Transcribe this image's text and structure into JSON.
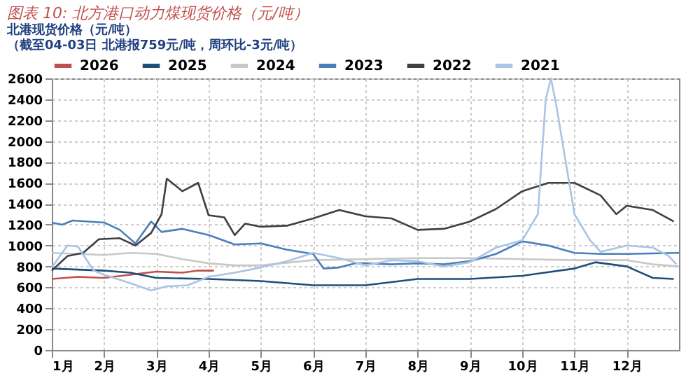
{
  "chart_data": {
    "type": "line",
    "title": "图表 10: 北方港口动力煤现货价格（元/吨）",
    "subtitle": "北港现货价格（元/吨）",
    "annotations": [
      "（截至04-03日 北港报759元/吨，周环比-3元/吨）"
    ],
    "xlim": [
      1,
      13
    ],
    "xticks": [
      {
        "value": 1,
        "label": "1月"
      },
      {
        "value": 2,
        "label": "2月"
      },
      {
        "value": 3,
        "label": "3月"
      },
      {
        "value": 4,
        "label": "4月"
      },
      {
        "value": 5,
        "label": "5月"
      },
      {
        "value": 6,
        "label": "6月"
      },
      {
        "value": 7,
        "label": "7月"
      },
      {
        "value": 8,
        "label": "8月"
      },
      {
        "value": 9,
        "label": "9月"
      },
      {
        "value": 10,
        "label": "10月"
      },
      {
        "value": 11,
        "label": "11月"
      },
      {
        "value": 12,
        "label": "12月"
      }
    ],
    "ylim": [
      0,
      2600
    ],
    "yticks": [
      0,
      200,
      400,
      600,
      800,
      1000,
      1200,
      1400,
      1600,
      1800,
      2000,
      2200,
      2400,
      2600
    ],
    "grid": true,
    "legend": "top",
    "marker": "none",
    "line_style": "solid",
    "series": [
      {
        "name": "2026",
        "color": "#c0504d",
        "x": [
          1,
          1.5,
          2,
          2.5,
          3,
          3.5,
          3.8,
          4.1
        ],
        "values": [
          680,
          700,
          690,
          720,
          750,
          740,
          760,
          760
        ]
      },
      {
        "name": "2025",
        "color": "#1f4e79",
        "x": [
          1,
          2,
          2.5,
          3,
          4,
          5,
          6,
          7,
          8,
          9,
          10,
          11,
          11.4,
          12,
          12.5,
          12.9
        ],
        "values": [
          780,
          760,
          740,
          690,
          680,
          660,
          620,
          620,
          680,
          680,
          710,
          780,
          840,
          800,
          690,
          680
        ]
      },
      {
        "name": "2024",
        "color": "#c8c8c8",
        "x": [
          1,
          2,
          2.5,
          3,
          3.5,
          4,
          4.5,
          5,
          6,
          7,
          8,
          9,
          10,
          11,
          12,
          12.5,
          13
        ],
        "values": [
          930,
          910,
          930,
          920,
          870,
          830,
          810,
          810,
          860,
          870,
          880,
          880,
          870,
          860,
          860,
          820,
          800
        ]
      },
      {
        "name": "2023",
        "color": "#4a7ebb",
        "x": [
          1,
          1.2,
          1.4,
          2,
          2.3,
          2.6,
          2.9,
          3.1,
          3.5,
          4,
          4.5,
          5,
          5.5,
          6,
          6.2,
          6.5,
          6.8,
          7,
          7.5,
          8,
          8.5,
          9,
          9.5,
          10,
          10.5,
          11,
          11.5,
          12,
          13
        ],
        "values": [
          1220,
          1200,
          1240,
          1220,
          1150,
          1020,
          1230,
          1130,
          1160,
          1100,
          1010,
          1020,
          960,
          920,
          780,
          790,
          830,
          830,
          820,
          830,
          820,
          850,
          920,
          1040,
          1000,
          930,
          920,
          920,
          930
        ]
      },
      {
        "name": "2022",
        "color": "#404040",
        "x": [
          1,
          1.3,
          1.6,
          1.9,
          2.3,
          2.6,
          2.9,
          3.1,
          3.2,
          3.5,
          3.8,
          4,
          4.3,
          4.5,
          4.7,
          5,
          5.5,
          6,
          6.5,
          7,
          7.5,
          8,
          8.5,
          9,
          9.5,
          10,
          10.5,
          11,
          11.5,
          11.8,
          12,
          12.5,
          12.9
        ],
        "values": [
          760,
          900,
          930,
          1060,
          1070,
          1000,
          1120,
          1300,
          1640,
          1520,
          1600,
          1290,
          1270,
          1100,
          1210,
          1180,
          1190,
          1260,
          1340,
          1280,
          1260,
          1150,
          1160,
          1230,
          1350,
          1520,
          1600,
          1600,
          1480,
          1300,
          1380,
          1340,
          1230
        ]
      },
      {
        "name": "2021",
        "color": "#a9c4e4",
        "x": [
          1,
          1.3,
          1.5,
          1.8,
          2,
          2.5,
          2.9,
          3.2,
          3.6,
          4,
          4.5,
          5,
          5.5,
          6,
          6.5,
          7,
          7.5,
          8,
          8.5,
          9,
          9.5,
          10,
          10.3,
          10.45,
          10.55,
          10.65,
          10.8,
          11,
          11.3,
          11.5,
          12,
          12.5,
          12.8,
          12.95
        ],
        "values": [
          790,
          1000,
          990,
          760,
          720,
          640,
          570,
          610,
          620,
          700,
          740,
          790,
          850,
          930,
          880,
          810,
          860,
          850,
          800,
          840,
          980,
          1050,
          1300,
          2400,
          2600,
          2350,
          1900,
          1300,
          1050,
          940,
          1000,
          980,
          900,
          820
        ]
      }
    ]
  }
}
